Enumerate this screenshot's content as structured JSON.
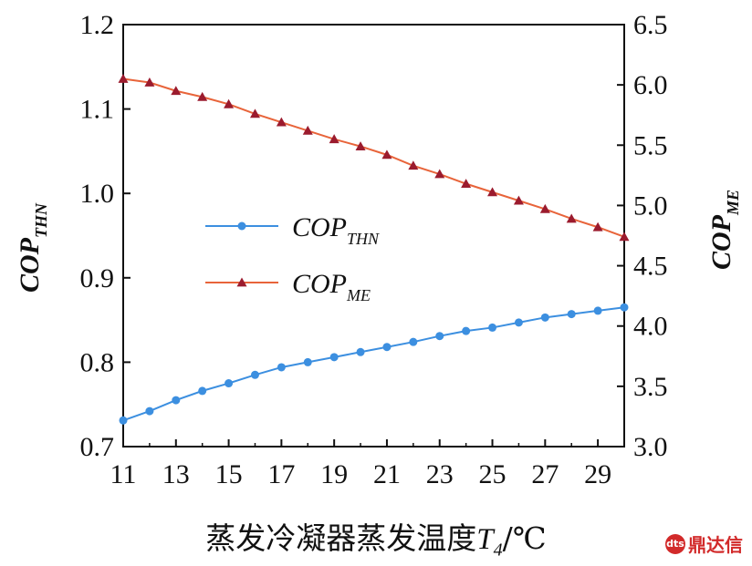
{
  "chart_data": {
    "type": "line",
    "xlabel": {
      "prefix": "蒸发冷凝器蒸发温度",
      "var": "T",
      "sub": "4",
      "suffix": "/℃"
    },
    "ylabel_left": {
      "main": "COP",
      "sub": "THN"
    },
    "ylabel_right": {
      "main": "COP",
      "sub": "ME"
    },
    "x_ticks": [
      "11",
      "13",
      "15",
      "17",
      "19",
      "21",
      "23",
      "25",
      "27",
      "29"
    ],
    "y_left_ticks": [
      "0.7",
      "0.8",
      "0.9",
      "1.0",
      "1.1",
      "1.2"
    ],
    "y_right_ticks": [
      "3.0",
      "3.5",
      "4.0",
      "4.5",
      "5.0",
      "5.5",
      "6.0",
      "6.5"
    ],
    "xlim": [
      11,
      30
    ],
    "ylim_left": [
      0.7,
      1.2
    ],
    "ylim_right": [
      3.0,
      6.5
    ],
    "x": [
      11,
      12,
      13,
      14,
      15,
      16,
      17,
      18,
      19,
      20,
      21,
      22,
      23,
      24,
      25,
      26,
      27,
      28,
      29,
      30
    ],
    "series": [
      {
        "name": "COP_THN",
        "label_main": "COP",
        "label_sub": "THN",
        "axis": "left",
        "color": "#3c8fe0",
        "marker": "circle",
        "values": [
          0.731,
          0.742,
          0.755,
          0.766,
          0.775,
          0.785,
          0.794,
          0.8,
          0.806,
          0.812,
          0.818,
          0.824,
          0.831,
          0.837,
          0.841,
          0.847,
          0.853,
          0.857,
          0.861,
          0.865
        ]
      },
      {
        "name": "COP_ME",
        "label_main": "COP",
        "label_sub": "ME",
        "axis": "right",
        "color": "#e8643a",
        "marker_color": "#9b1b2e",
        "marker": "triangle",
        "values": [
          6.05,
          6.02,
          5.95,
          5.9,
          5.84,
          5.76,
          5.69,
          5.62,
          5.55,
          5.49,
          5.42,
          5.33,
          5.26,
          5.18,
          5.11,
          5.04,
          4.97,
          4.89,
          4.82,
          4.74
        ]
      }
    ],
    "legend_position": "center-left",
    "grid": false
  },
  "watermark": {
    "text": "鼎达信",
    "logo": "dts"
  }
}
